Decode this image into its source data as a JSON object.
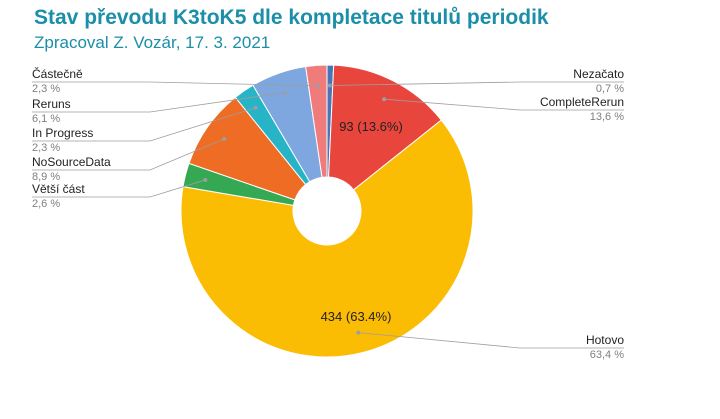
{
  "title": "Stav převodu K3toK5 dle kompletace titulů periodik",
  "subtitle": "Zpracoval Z. Vozár, 17. 3. 2021",
  "chart_data": {
    "type": "pie",
    "style": "donut",
    "slices": [
      {
        "name": "Nezačato",
        "value": 5,
        "percent_label": "0,7 %",
        "color": "#4a74b8",
        "inner_label": ""
      },
      {
        "name": "CompleteRerun",
        "value": 93,
        "percent_label": "13,6 %",
        "color": "#e8453c",
        "inner_label": "93 (13.6%)"
      },
      {
        "name": "Hotovo",
        "value": 434,
        "percent_label": "63,4 %",
        "color": "#fbbc04",
        "inner_label": "434 (63.4%)"
      },
      {
        "name": "Větší část",
        "value": 18,
        "percent_label": "2,6 %",
        "color": "#34a853",
        "inner_label": ""
      },
      {
        "name": "NoSourceData",
        "value": 61,
        "percent_label": "8,9 %",
        "color": "#ee6c24",
        "inner_label": ""
      },
      {
        "name": "In Progress",
        "value": 16,
        "percent_label": "2,3 %",
        "color": "#26b4c6",
        "inner_label": ""
      },
      {
        "name": "Reruns",
        "value": 42,
        "percent_label": "6,1 %",
        "color": "#7ea6df",
        "inner_label": ""
      },
      {
        "name": "Částečně",
        "value": 16,
        "percent_label": "2,3 %",
        "color": "#f07b7b",
        "inner_label": ""
      }
    ]
  }
}
